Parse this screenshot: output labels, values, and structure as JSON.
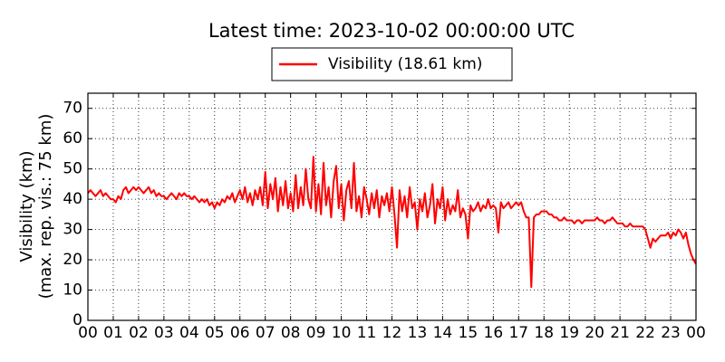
{
  "chart_data": {
    "type": "line",
    "title": "Latest time: 2023-10-02 00:00:00 UTC",
    "ylabel": [
      "Visibility (km)",
      "(max. rep. vis.: 75 km)"
    ],
    "legend": "upper center",
    "grid": true,
    "xlim": [
      0,
      24
    ],
    "xticks": [
      {
        "value": 0,
        "label": "00"
      },
      {
        "value": 1,
        "label": "01"
      },
      {
        "value": 2,
        "label": "02"
      },
      {
        "value": 3,
        "label": "03"
      },
      {
        "value": 4,
        "label": "04"
      },
      {
        "value": 5,
        "label": "05"
      },
      {
        "value": 6,
        "label": "06"
      },
      {
        "value": 7,
        "label": "07"
      },
      {
        "value": 8,
        "label": "08"
      },
      {
        "value": 9,
        "label": "09"
      },
      {
        "value": 10,
        "label": "10"
      },
      {
        "value": 11,
        "label": "11"
      },
      {
        "value": 12,
        "label": "12"
      },
      {
        "value": 13,
        "label": "13"
      },
      {
        "value": 14,
        "label": "14"
      },
      {
        "value": 15,
        "label": "15"
      },
      {
        "value": 16,
        "label": "16"
      },
      {
        "value": 17,
        "label": "17"
      },
      {
        "value": 18,
        "label": "18"
      },
      {
        "value": 19,
        "label": "19"
      },
      {
        "value": 20,
        "label": "20"
      },
      {
        "value": 21,
        "label": "21"
      },
      {
        "value": 22,
        "label": "22"
      },
      {
        "value": 23,
        "label": "23"
      },
      {
        "value": 24,
        "label": "00"
      }
    ],
    "ylim": [
      0,
      75
    ],
    "yticks": [
      0,
      10,
      20,
      30,
      40,
      50,
      60,
      70
    ],
    "x": [
      0,
      0.1,
      0.2,
      0.3,
      0.4,
      0.5,
      0.6,
      0.7,
      0.8,
      0.9,
      1,
      1.1,
      1.2,
      1.3,
      1.4,
      1.5,
      1.6,
      1.7,
      1.8,
      1.9,
      2,
      2.1,
      2.2,
      2.3,
      2.4,
      2.5,
      2.6,
      2.7,
      2.8,
      2.9,
      3,
      3.1,
      3.2,
      3.3,
      3.4,
      3.5,
      3.6,
      3.7,
      3.8,
      3.9,
      4,
      4.1,
      4.2,
      4.3,
      4.4,
      4.5,
      4.6,
      4.7,
      4.8,
      4.9,
      5,
      5.1,
      5.2,
      5.3,
      5.4,
      5.5,
      5.6,
      5.7,
      5.8,
      5.9,
      6,
      6.1,
      6.2,
      6.3,
      6.4,
      6.5,
      6.6,
      6.7,
      6.8,
      6.9,
      7,
      7.1,
      7.2,
      7.3,
      7.4,
      7.5,
      7.6,
      7.7,
      7.8,
      7.9,
      8,
      8.1,
      8.2,
      8.3,
      8.4,
      8.5,
      8.6,
      8.7,
      8.8,
      8.9,
      9,
      9.1,
      9.2,
      9.3,
      9.4,
      9.5,
      9.6,
      9.7,
      9.8,
      9.9,
      10,
      10.1,
      10.2,
      10.3,
      10.4,
      10.5,
      10.6,
      10.7,
      10.8,
      10.9,
      11,
      11.1,
      11.2,
      11.3,
      11.4,
      11.5,
      11.6,
      11.7,
      11.8,
      11.9,
      12,
      12.1,
      12.2,
      12.3,
      12.4,
      12.5,
      12.6,
      12.7,
      12.8,
      12.9,
      13,
      13.1,
      13.2,
      13.3,
      13.4,
      13.5,
      13.6,
      13.7,
      13.8,
      13.9,
      14,
      14.1,
      14.2,
      14.3,
      14.4,
      14.5,
      14.6,
      14.7,
      14.8,
      14.9,
      15,
      15.1,
      15.2,
      15.3,
      15.4,
      15.5,
      15.6,
      15.7,
      15.8,
      15.9,
      16,
      16.1,
      16.2,
      16.3,
      16.4,
      16.5,
      16.6,
      16.7,
      16.8,
      16.9,
      17,
      17.1,
      17.2,
      17.3,
      17.4,
      17.5,
      17.6,
      17.7,
      17.8,
      17.9,
      18,
      18.1,
      18.2,
      18.3,
      18.4,
      18.5,
      18.6,
      18.7,
      18.8,
      18.9,
      19,
      19.1,
      19.2,
      19.3,
      19.4,
      19.5,
      19.6,
      19.7,
      19.8,
      19.9,
      20,
      20.1,
      20.2,
      20.3,
      20.4,
      20.5,
      20.6,
      20.7,
      20.8,
      20.9,
      21,
      21.1,
      21.2,
      21.3,
      21.4,
      21.5,
      21.6,
      21.7,
      21.8,
      21.9,
      22,
      22.1,
      22.2,
      22.3,
      22.4,
      22.5,
      22.6,
      22.7,
      22.8,
      22.9,
      23,
      23.1,
      23.2,
      23.3,
      23.4,
      23.5,
      23.6,
      23.7,
      23.8,
      23.9,
      24
    ],
    "series": [
      {
        "name": "Visibility (18.61 km)",
        "color": "#ff0000",
        "values": [
          42,
          43,
          42,
          41,
          42,
          43,
          41,
          42,
          41,
          40,
          40,
          39,
          41,
          40,
          43,
          44,
          42,
          43,
          44,
          43,
          44,
          43,
          42,
          43,
          44,
          42,
          43,
          41,
          42,
          41,
          41,
          40,
          41,
          42,
          41,
          40,
          42,
          41,
          42,
          41,
          41,
          40,
          41,
          40,
          39,
          40,
          39,
          40,
          38,
          39,
          37,
          39,
          38,
          40,
          39,
          41,
          40,
          42,
          39,
          41,
          43,
          40,
          44,
          39,
          42,
          38,
          43,
          40,
          44,
          38,
          49,
          37,
          45,
          40,
          47,
          36,
          44,
          38,
          46,
          37,
          42,
          36,
          48,
          37,
          44,
          38,
          50,
          40,
          37,
          54,
          36,
          45,
          35,
          52,
          38,
          44,
          34,
          46,
          51,
          37,
          45,
          33,
          43,
          46,
          37,
          52,
          36,
          41,
          34,
          44,
          40,
          35,
          42,
          37,
          43,
          34,
          41,
          38,
          42,
          36,
          44,
          35,
          24,
          43,
          36,
          41,
          34,
          44,
          37,
          39,
          30,
          40,
          36,
          42,
          34,
          38,
          45,
          32,
          40,
          37,
          44,
          33,
          40,
          35,
          38,
          36,
          43,
          34,
          37,
          35,
          27,
          38,
          36,
          37,
          39,
          36,
          38,
          37,
          40,
          37,
          38,
          37,
          29,
          39,
          37,
          38,
          39,
          37,
          38,
          39,
          38,
          39,
          36,
          34,
          34,
          11,
          34,
          35,
          35,
          36,
          36,
          36,
          35,
          35,
          34,
          34,
          33,
          33,
          34,
          33,
          33,
          33,
          32,
          33,
          33,
          32,
          33,
          33,
          33,
          33,
          33,
          34,
          33,
          33,
          32,
          33,
          33,
          34,
          33,
          32,
          32,
          32,
          31,
          31,
          32,
          31,
          31,
          31,
          31,
          31,
          30,
          27,
          24,
          27,
          26,
          27,
          28,
          28,
          28,
          29,
          27,
          29,
          28,
          30,
          29,
          27,
          29,
          25,
          22,
          20,
          18.61
        ]
      }
    ]
  }
}
